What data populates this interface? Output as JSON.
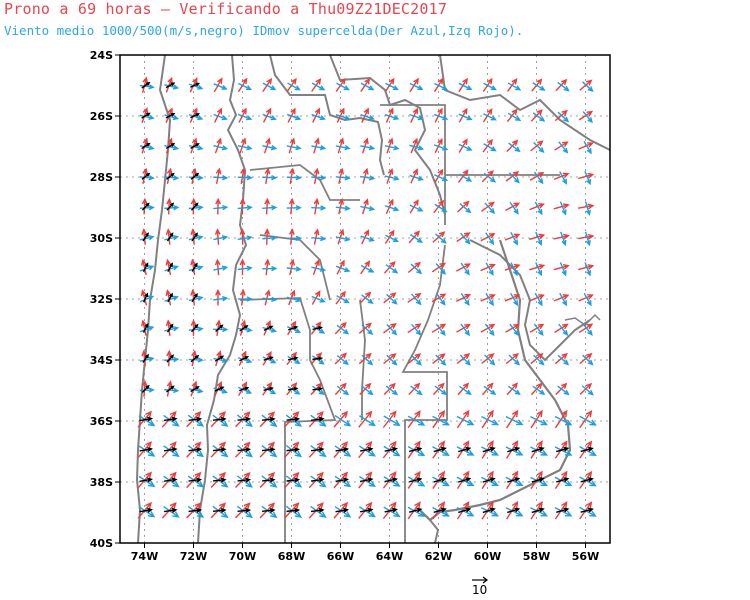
{
  "title": "Prono a 69 horas – Verificando a Thu09Z21DEC2017",
  "subtitle": "Viento medio 1000/500(m/s,negro) IDmov supercelda(Der Azul,Izq Rojo).",
  "lat_labels": [
    "24S",
    "26S",
    "28S",
    "30S",
    "32S",
    "34S",
    "36S",
    "38S",
    "40S"
  ],
  "lon_labels": [
    "74W",
    "72W",
    "70W",
    "68W",
    "66W",
    "64W",
    "62W",
    "60W",
    "58W",
    "56W"
  ],
  "reference_vector_label": "10",
  "colors": {
    "mean_wind": "#000000",
    "right_mover": "#1a9fe0",
    "left_mover": "#ee3b3b",
    "borders": "#808080",
    "grid": "#a0a0a0"
  }
}
